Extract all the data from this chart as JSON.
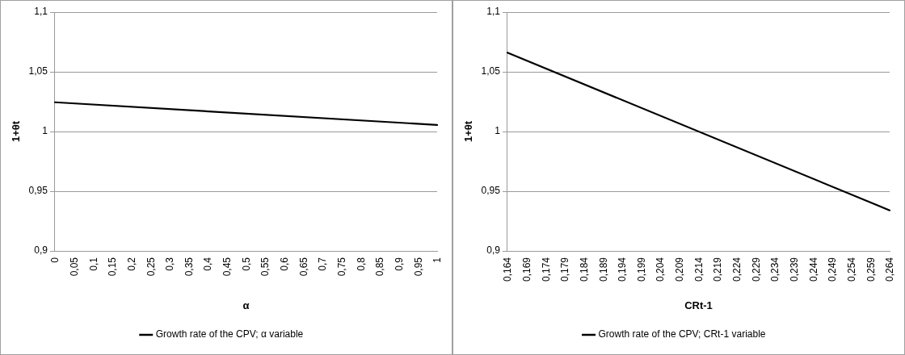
{
  "chart_data": [
    {
      "type": "line",
      "xlabel": "α",
      "ylabel": "1+θt",
      "series": [
        {
          "name": "Growth rate of the CPV; α variable",
          "color": "#000000",
          "x": [
            0,
            1
          ],
          "values": [
            1.0245,
            1.0055
          ]
        }
      ],
      "xlim": [
        0,
        1
      ],
      "xticks": [
        0,
        {
          "value": 0.05,
          "label": "0,05"
        },
        {
          "value": 0.1,
          "label": "0,1"
        },
        {
          "value": 0.15,
          "label": "0,15"
        },
        {
          "value": 0.2,
          "label": "0,2"
        },
        {
          "value": 0.25,
          "label": "0,25"
        },
        {
          "value": 0.3,
          "label": "0,3"
        },
        {
          "value": 0.35,
          "label": "0,35"
        },
        {
          "value": 0.4,
          "label": "0,4"
        },
        {
          "value": 0.45,
          "label": "0,45"
        },
        {
          "value": 0.5,
          "label": "0,5"
        },
        {
          "value": 0.55,
          "label": "0,55"
        },
        {
          "value": 0.6,
          "label": "0,6"
        },
        {
          "value": 0.65,
          "label": "0,65"
        },
        {
          "value": 0.7,
          "label": "0,7"
        },
        {
          "value": 0.75,
          "label": "0,75"
        },
        {
          "value": 0.8,
          "label": "0,8"
        },
        {
          "value": 0.85,
          "label": "0,85"
        },
        {
          "value": 0.9,
          "label": "0,9"
        },
        {
          "value": 0.95,
          "label": "0,95"
        },
        1
      ],
      "ylim": [
        0.9,
        1.1
      ],
      "yticks": [
        {
          "value": 0.9,
          "label": "0,9"
        },
        {
          "value": 0.95,
          "label": "0,95"
        },
        1,
        {
          "value": 1.05,
          "label": "1,05"
        },
        {
          "value": 1.1,
          "label": "1,1"
        }
      ],
      "grid": "y",
      "legend": "bottom",
      "marker": "none"
    },
    {
      "type": "line",
      "xlabel": "CRt-1",
      "ylabel": "1+θt",
      "series": [
        {
          "name": "Growth rate of the CPV; CRt-1 variable",
          "color": "#000000",
          "x": [
            0.164,
            0.264
          ],
          "values": [
            1.066,
            0.934
          ]
        }
      ],
      "xlim": [
        0.164,
        0.264
      ],
      "xticks": [
        {
          "value": 0.164,
          "label": "0,164"
        },
        {
          "value": 0.169,
          "label": "0,169"
        },
        {
          "value": 0.174,
          "label": "0,174"
        },
        {
          "value": 0.179,
          "label": "0,179"
        },
        {
          "value": 0.184,
          "label": "0,184"
        },
        {
          "value": 0.189,
          "label": "0,189"
        },
        {
          "value": 0.194,
          "label": "0,194"
        },
        {
          "value": 0.199,
          "label": "0,199"
        },
        {
          "value": 0.204,
          "label": "0,204"
        },
        {
          "value": 0.209,
          "label": "0,209"
        },
        {
          "value": 0.214,
          "label": "0,214"
        },
        {
          "value": 0.219,
          "label": "0,219"
        },
        {
          "value": 0.224,
          "label": "0,224"
        },
        {
          "value": 0.229,
          "label": "0,229"
        },
        {
          "value": 0.234,
          "label": "0,234"
        },
        {
          "value": 0.239,
          "label": "0,239"
        },
        {
          "value": 0.244,
          "label": "0,244"
        },
        {
          "value": 0.249,
          "label": "0,249"
        },
        {
          "value": 0.254,
          "label": "0,254"
        },
        {
          "value": 0.259,
          "label": "0,259"
        },
        {
          "value": 0.264,
          "label": "0,264"
        }
      ],
      "ylim": [
        0.9,
        1.1
      ],
      "yticks": [
        {
          "value": 0.9,
          "label": "0,9"
        },
        {
          "value": 0.95,
          "label": "0,95"
        },
        1,
        {
          "value": 1.05,
          "label": "1,05"
        },
        {
          "value": 1.1,
          "label": "1,1"
        }
      ],
      "grid": "y",
      "legend": "bottom",
      "marker": "none"
    }
  ]
}
